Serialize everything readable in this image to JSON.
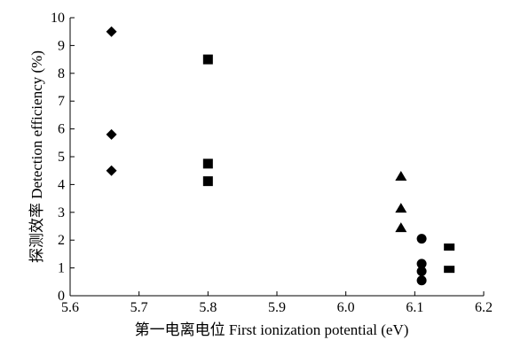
{
  "chart_data": {
    "type": "scatter",
    "xlabel": "第一电离电位 First ionization potential (eV)",
    "ylabel": "探测效率 Detection efficiency (%)",
    "xlim": [
      5.6,
      6.2
    ],
    "ylim": [
      0,
      10
    ],
    "x_ticks": [
      "5.6",
      "5.7",
      "5.8",
      "5.9",
      "6.0",
      "6.1",
      "6.2"
    ],
    "y_ticks": [
      "0",
      "1",
      "2",
      "3",
      "4",
      "5",
      "6",
      "7",
      "8",
      "9",
      "10"
    ],
    "grid": false,
    "legend": "none",
    "series": [
      {
        "marker": "diamond",
        "x": [
          5.66,
          5.66,
          5.66
        ],
        "y": [
          9.5,
          5.8,
          4.5
        ]
      },
      {
        "marker": "square",
        "x": [
          5.8,
          5.8,
          5.8
        ],
        "y": [
          8.5,
          4.75,
          4.12
        ]
      },
      {
        "marker": "triangle",
        "x": [
          6.08,
          6.08,
          6.08
        ],
        "y": [
          4.3,
          3.15,
          2.45
        ]
      },
      {
        "marker": "circle",
        "x": [
          6.11,
          6.11,
          6.11,
          6.11
        ],
        "y": [
          2.05,
          1.15,
          0.88,
          0.55
        ]
      },
      {
        "marker": "rectangle",
        "x": [
          6.15,
          6.15
        ],
        "y": [
          1.75,
          0.95
        ]
      }
    ]
  }
}
